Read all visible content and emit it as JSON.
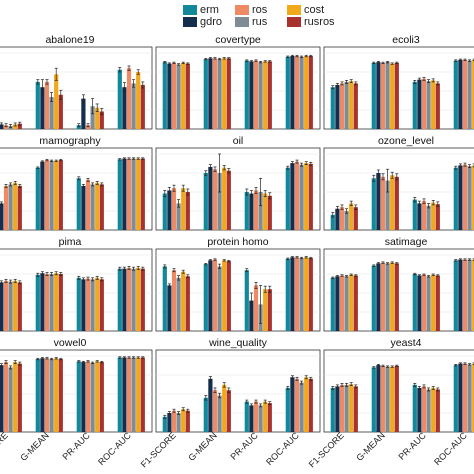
{
  "chart_data": {
    "type": "bar",
    "legend_position": "top",
    "grid": true,
    "legend": [
      {
        "name": "erm",
        "color": "#11899a"
      },
      {
        "name": "gdro",
        "color": "#152e4e"
      },
      {
        "name": "ros",
        "color": "#ef8a65"
      },
      {
        "name": "rus",
        "color": "#7f8c95"
      },
      {
        "name": "cost",
        "color": "#f1a81a"
      },
      {
        "name": "rusros",
        "color": "#a8322d"
      }
    ],
    "categories": [
      "F1-SCORE",
      "G-MEAN",
      "PR-AUC",
      "ROC-AUC"
    ],
    "ylim": [
      0,
      1
    ],
    "panels": [
      {
        "title": "abalone19",
        "values": [
          [
            0.05,
            0.06,
            0.05,
            0.04,
            0.06,
            0.07
          ],
          [
            0.62,
            0.55,
            0.62,
            0.42,
            0.72,
            0.45
          ],
          [
            0.05,
            0.4,
            0.05,
            0.3,
            0.28,
            0.23
          ],
          [
            0.78,
            0.55,
            0.8,
            0.6,
            0.75,
            0.58
          ]
        ],
        "errors": [
          [
            0.02,
            0.02,
            0.02,
            0.02,
            0.02,
            0.02
          ],
          [
            0.03,
            0.1,
            0.03,
            0.06,
            0.08,
            0.06
          ],
          [
            0.02,
            0.05,
            0.02,
            0.1,
            0.05,
            0.04
          ],
          [
            0.03,
            0.06,
            0.03,
            0.05,
            0.03,
            0.04
          ]
        ]
      },
      {
        "title": "covertype",
        "values": [
          [
            0.88,
            0.86,
            0.87,
            0.85,
            0.87,
            0.86
          ],
          [
            0.92,
            0.93,
            0.93,
            0.92,
            0.93,
            0.93
          ],
          [
            0.9,
            0.89,
            0.9,
            0.88,
            0.89,
            0.89
          ],
          [
            0.95,
            0.96,
            0.96,
            0.95,
            0.96,
            0.96
          ]
        ],
        "errors": [
          [
            0.01,
            0.01,
            0.01,
            0.01,
            0.01,
            0.01
          ],
          [
            0.01,
            0.01,
            0.01,
            0.01,
            0.01,
            0.01
          ],
          [
            0.01,
            0.01,
            0.01,
            0.01,
            0.01,
            0.01
          ],
          [
            0.01,
            0.01,
            0.01,
            0.01,
            0.01,
            0.01
          ]
        ]
      },
      {
        "title": "ecoli3",
        "values": [
          [
            0.55,
            0.58,
            0.6,
            0.62,
            0.63,
            0.6
          ],
          [
            0.87,
            0.88,
            0.87,
            0.88,
            0.86,
            0.87
          ],
          [
            0.62,
            0.65,
            0.66,
            0.63,
            0.64,
            0.6
          ],
          [
            0.9,
            0.91,
            0.91,
            0.9,
            0.91,
            0.9
          ]
        ],
        "errors": [
          [
            0.02,
            0.02,
            0.02,
            0.02,
            0.02,
            0.02
          ],
          [
            0.01,
            0.01,
            0.01,
            0.01,
            0.01,
            0.01
          ],
          [
            0.02,
            0.02,
            0.02,
            0.02,
            0.02,
            0.02
          ],
          [
            0.01,
            0.01,
            0.01,
            0.01,
            0.01,
            0.01
          ]
        ]
      },
      {
        "title": "mamography",
        "values": [
          [
            0.65,
            0.35,
            0.58,
            0.6,
            0.62,
            0.58
          ],
          [
            0.82,
            0.9,
            0.92,
            0.91,
            0.91,
            0.92
          ],
          [
            0.68,
            0.58,
            0.66,
            0.6,
            0.62,
            0.6
          ],
          [
            0.93,
            0.94,
            0.94,
            0.94,
            0.94,
            0.94
          ]
        ],
        "errors": [
          [
            0.02,
            0.02,
            0.02,
            0.02,
            0.02,
            0.02
          ],
          [
            0.01,
            0.01,
            0.01,
            0.01,
            0.01,
            0.01
          ],
          [
            0.02,
            0.02,
            0.02,
            0.02,
            0.02,
            0.02
          ],
          [
            0.01,
            0.01,
            0.01,
            0.01,
            0.01,
            0.01
          ]
        ]
      },
      {
        "title": "oil",
        "values": [
          [
            0.48,
            0.52,
            0.55,
            0.35,
            0.55,
            0.5
          ],
          [
            0.75,
            0.83,
            0.8,
            0.75,
            0.82,
            0.78
          ],
          [
            0.5,
            0.48,
            0.52,
            0.5,
            0.48,
            0.45
          ],
          [
            0.82,
            0.88,
            0.9,
            0.86,
            0.88,
            0.87
          ]
        ],
        "errors": [
          [
            0.04,
            0.04,
            0.04,
            0.05,
            0.04,
            0.04
          ],
          [
            0.03,
            0.03,
            0.03,
            0.25,
            0.03,
            0.03
          ],
          [
            0.04,
            0.04,
            0.04,
            0.18,
            0.04,
            0.04
          ],
          [
            0.02,
            0.02,
            0.02,
            0.02,
            0.02,
            0.02
          ]
        ]
      },
      {
        "title": "ozone_level",
        "values": [
          [
            0.2,
            0.28,
            0.3,
            0.25,
            0.35,
            0.3
          ],
          [
            0.68,
            0.75,
            0.7,
            0.65,
            0.72,
            0.7
          ],
          [
            0.4,
            0.35,
            0.38,
            0.32,
            0.36,
            0.34
          ],
          [
            0.82,
            0.85,
            0.86,
            0.84,
            0.85,
            0.85
          ]
        ],
        "errors": [
          [
            0.03,
            0.03,
            0.03,
            0.03,
            0.03,
            0.03
          ],
          [
            0.04,
            0.04,
            0.04,
            0.15,
            0.04,
            0.04
          ],
          [
            0.03,
            0.03,
            0.03,
            0.03,
            0.03,
            0.03
          ],
          [
            0.02,
            0.02,
            0.02,
            0.02,
            0.02,
            0.02
          ]
        ]
      },
      {
        "title": "pima",
        "values": [
          [
            0.65,
            0.64,
            0.66,
            0.65,
            0.66,
            0.64
          ],
          [
            0.74,
            0.76,
            0.75,
            0.75,
            0.76,
            0.75
          ],
          [
            0.7,
            0.68,
            0.69,
            0.68,
            0.7,
            0.68
          ],
          [
            0.82,
            0.82,
            0.83,
            0.82,
            0.83,
            0.82
          ]
        ],
        "errors": [
          [
            0.02,
            0.02,
            0.02,
            0.02,
            0.02,
            0.02
          ],
          [
            0.02,
            0.02,
            0.02,
            0.02,
            0.02,
            0.02
          ],
          [
            0.02,
            0.02,
            0.02,
            0.02,
            0.02,
            0.02
          ],
          [
            0.02,
            0.02,
            0.02,
            0.02,
            0.02,
            0.02
          ]
        ]
      },
      {
        "title": "protein homo",
        "values": [
          [
            0.85,
            0.6,
            0.8,
            0.7,
            0.78,
            0.72
          ],
          [
            0.88,
            0.93,
            0.94,
            0.85,
            0.93,
            0.92
          ],
          [
            0.8,
            0.4,
            0.6,
            0.35,
            0.55,
            0.55
          ],
          [
            0.95,
            0.97,
            0.97,
            0.96,
            0.97,
            0.96
          ]
        ],
        "errors": [
          [
            0.02,
            0.02,
            0.02,
            0.03,
            0.02,
            0.02
          ],
          [
            0.01,
            0.01,
            0.01,
            0.03,
            0.01,
            0.01
          ],
          [
            0.02,
            0.1,
            0.04,
            0.25,
            0.04,
            0.04
          ],
          [
            0.01,
            0.01,
            0.01,
            0.01,
            0.01,
            0.01
          ]
        ]
      },
      {
        "title": "satimage",
        "values": [
          [
            0.7,
            0.72,
            0.73,
            0.72,
            0.74,
            0.73
          ],
          [
            0.86,
            0.89,
            0.9,
            0.89,
            0.9,
            0.89
          ],
          [
            0.75,
            0.73,
            0.74,
            0.72,
            0.74,
            0.73
          ],
          [
            0.93,
            0.94,
            0.94,
            0.94,
            0.94,
            0.94
          ]
        ],
        "errors": [
          [
            0.01,
            0.01,
            0.01,
            0.01,
            0.01,
            0.01
          ],
          [
            0.01,
            0.01,
            0.01,
            0.01,
            0.01,
            0.01
          ],
          [
            0.01,
            0.01,
            0.01,
            0.01,
            0.01,
            0.01
          ],
          [
            0.01,
            0.01,
            0.01,
            0.01,
            0.01,
            0.01
          ]
        ]
      },
      {
        "title": "vowel0",
        "values": [
          [
            0.9,
            0.88,
            0.92,
            0.85,
            0.92,
            0.9
          ],
          [
            0.96,
            0.97,
            0.97,
            0.96,
            0.97,
            0.96
          ],
          [
            0.93,
            0.92,
            0.93,
            0.91,
            0.93,
            0.92
          ],
          [
            0.98,
            0.98,
            0.98,
            0.98,
            0.98,
            0.98
          ]
        ],
        "errors": [
          [
            0.02,
            0.02,
            0.02,
            0.02,
            0.02,
            0.02
          ],
          [
            0.01,
            0.01,
            0.01,
            0.01,
            0.01,
            0.01
          ],
          [
            0.01,
            0.01,
            0.01,
            0.01,
            0.01,
            0.01
          ],
          [
            0.01,
            0.01,
            0.01,
            0.01,
            0.01,
            0.01
          ]
        ]
      },
      {
        "title": "wine_quality",
        "values": [
          [
            0.2,
            0.25,
            0.28,
            0.25,
            0.3,
            0.28
          ],
          [
            0.45,
            0.7,
            0.55,
            0.48,
            0.62,
            0.55
          ],
          [
            0.4,
            0.35,
            0.4,
            0.35,
            0.4,
            0.38
          ],
          [
            0.58,
            0.72,
            0.7,
            0.65,
            0.72,
            0.7
          ]
        ],
        "errors": [
          [
            0.02,
            0.02,
            0.02,
            0.02,
            0.02,
            0.02
          ],
          [
            0.03,
            0.03,
            0.03,
            0.03,
            0.03,
            0.03
          ],
          [
            0.02,
            0.02,
            0.02,
            0.02,
            0.02,
            0.02
          ],
          [
            0.02,
            0.02,
            0.02,
            0.02,
            0.02,
            0.02
          ]
        ]
      },
      {
        "title": "yeast4",
        "values": [
          [
            0.58,
            0.6,
            0.62,
            0.62,
            0.63,
            0.6
          ],
          [
            0.85,
            0.88,
            0.87,
            0.86,
            0.86,
            0.87
          ],
          [
            0.62,
            0.58,
            0.6,
            0.56,
            0.58,
            0.56
          ],
          [
            0.88,
            0.9,
            0.9,
            0.89,
            0.9,
            0.89
          ]
        ],
        "errors": [
          [
            0.02,
            0.02,
            0.02,
            0.02,
            0.02,
            0.02
          ],
          [
            0.01,
            0.01,
            0.01,
            0.01,
            0.01,
            0.01
          ],
          [
            0.02,
            0.02,
            0.02,
            0.02,
            0.02,
            0.02
          ],
          [
            0.01,
            0.01,
            0.01,
            0.01,
            0.01,
            0.01
          ]
        ]
      }
    ]
  }
}
